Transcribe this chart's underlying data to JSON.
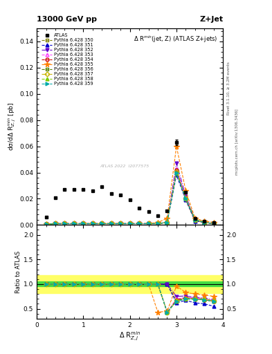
{
  "title_top": "13000 GeV pp",
  "title_right": "Z+Jet",
  "plot_title": "Δ R$^{min}$(jet, Z) (ATLAS Z+jets)",
  "ylabel_main": "dσ/dΔ R$^{min}_{Z,j}$ [pb]",
  "ylabel_ratio": "Ratio to ATLAS",
  "xlabel": "Δ R$^{min}_{Z,j}$",
  "watermark": "ATLAS 2022  I2077575",
  "right_label": "Rivet 3.1.10, ≥ 3.2M events",
  "right_label2": "mcplots.cern.ch [arXiv:1306.3436]",
  "xlim": [
    0,
    4
  ],
  "ylim_main": [
    0,
    0.15
  ],
  "ylim_ratio": [
    0.3,
    2.2
  ],
  "atlas_x": [
    0.2,
    0.4,
    0.6,
    0.8,
    1.0,
    1.2,
    1.4,
    1.6,
    1.8,
    2.0,
    2.2,
    2.4,
    2.6,
    2.8,
    3.0,
    3.2,
    3.4,
    3.6,
    3.8
  ],
  "atlas_y": [
    0.006,
    0.021,
    0.027,
    0.027,
    0.027,
    0.026,
    0.029,
    0.024,
    0.023,
    0.019,
    0.013,
    0.01,
    0.007,
    0.011,
    0.063,
    0.025,
    0.005,
    0.003,
    0.002
  ],
  "atlas_err": [
    0.0005,
    0.0005,
    0.0005,
    0.0005,
    0.0005,
    0.0005,
    0.0005,
    0.0005,
    0.0005,
    0.0005,
    0.0005,
    0.0005,
    0.0005,
    0.0005,
    0.002,
    0.0005,
    0.0005,
    0.0005,
    0.0005
  ],
  "pythia_x": [
    0.2,
    0.4,
    0.6,
    0.8,
    1.0,
    1.2,
    1.4,
    1.6,
    1.8,
    2.0,
    2.2,
    2.4,
    2.6,
    2.8,
    3.0,
    3.2,
    3.4,
    3.6,
    3.8
  ],
  "series": [
    {
      "label": "Pythia 6.428 350",
      "color": "#808000",
      "linestyle": "--",
      "marker": "s",
      "markerfill": "none",
      "y": [
        0.0005,
        0.001,
        0.001,
        0.001,
        0.001,
        0.001,
        0.001,
        0.001,
        0.001,
        0.001,
        0.001,
        0.001,
        0.001,
        0.002,
        0.041,
        0.019,
        0.003,
        0.002,
        0.001
      ],
      "ratio": [
        1.0,
        1.0,
        1.0,
        1.0,
        1.0,
        1.0,
        1.0,
        1.0,
        1.0,
        1.0,
        1.0,
        1.0,
        1.0,
        1.0,
        0.67,
        0.72,
        0.72,
        0.7,
        0.65
      ]
    },
    {
      "label": "Pythia 6.428 351",
      "color": "#0000cc",
      "linestyle": "--",
      "marker": "^",
      "markerfill": "full",
      "y": [
        0.0005,
        0.001,
        0.001,
        0.001,
        0.001,
        0.001,
        0.001,
        0.001,
        0.001,
        0.001,
        0.001,
        0.001,
        0.001,
        0.002,
        0.038,
        0.019,
        0.003,
        0.002,
        0.001
      ],
      "ratio": [
        1.0,
        1.0,
        1.0,
        1.0,
        1.0,
        1.0,
        1.0,
        1.0,
        1.0,
        1.0,
        1.0,
        1.0,
        1.0,
        1.0,
        0.62,
        0.67,
        0.62,
        0.6,
        0.55
      ]
    },
    {
      "label": "Pythia 6.428 352",
      "color": "#6600cc",
      "linestyle": "-.",
      "marker": "v",
      "markerfill": "full",
      "y": [
        0.0005,
        0.001,
        0.001,
        0.001,
        0.001,
        0.001,
        0.001,
        0.001,
        0.001,
        0.001,
        0.001,
        0.001,
        0.001,
        0.002,
        0.047,
        0.022,
        0.004,
        0.002,
        0.001
      ],
      "ratio": [
        1.0,
        1.0,
        1.0,
        1.0,
        1.0,
        1.0,
        1.0,
        1.0,
        1.0,
        1.0,
        1.0,
        1.0,
        1.0,
        1.0,
        0.75,
        0.76,
        0.73,
        0.72,
        0.68
      ]
    },
    {
      "label": "Pythia 6.428 353",
      "color": "#ff44ff",
      "linestyle": "--",
      "marker": "^",
      "markerfill": "none",
      "y": [
        0.0005,
        0.001,
        0.001,
        0.001,
        0.001,
        0.001,
        0.001,
        0.001,
        0.001,
        0.001,
        0.001,
        0.001,
        0.001,
        0.002,
        0.043,
        0.021,
        0.004,
        0.002,
        0.001
      ],
      "ratio": [
        1.0,
        1.0,
        1.0,
        1.0,
        1.0,
        1.0,
        1.0,
        1.0,
        1.0,
        1.0,
        1.0,
        1.0,
        1.0,
        0.43,
        0.7,
        0.73,
        0.72,
        0.7,
        0.67
      ]
    },
    {
      "label": "Pythia 6.428 354",
      "color": "#cc0000",
      "linestyle": "--",
      "marker": "o",
      "markerfill": "none",
      "y": [
        0.0005,
        0.001,
        0.001,
        0.001,
        0.001,
        0.001,
        0.001,
        0.001,
        0.001,
        0.001,
        0.001,
        0.001,
        0.001,
        0.002,
        0.042,
        0.02,
        0.004,
        0.002,
        0.001
      ],
      "ratio": [
        1.0,
        1.0,
        1.0,
        1.0,
        1.0,
        1.0,
        1.0,
        1.0,
        1.0,
        1.0,
        1.0,
        1.0,
        1.0,
        0.43,
        0.68,
        0.72,
        0.7,
        0.68,
        0.65
      ]
    },
    {
      "label": "Pythia 6.428 355",
      "color": "#ff8000",
      "linestyle": "--",
      "marker": "*",
      "markerfill": "full",
      "y": [
        0.0005,
        0.001,
        0.001,
        0.001,
        0.001,
        0.001,
        0.001,
        0.001,
        0.001,
        0.001,
        0.001,
        0.001,
        0.002,
        0.005,
        0.06,
        0.026,
        0.005,
        0.003,
        0.002
      ],
      "ratio": [
        1.0,
        1.0,
        1.0,
        1.0,
        1.0,
        1.0,
        1.0,
        1.0,
        1.0,
        1.0,
        1.0,
        1.0,
        0.43,
        0.45,
        0.96,
        0.83,
        0.8,
        0.78,
        0.75
      ]
    },
    {
      "label": "Pythia 6.428 356",
      "color": "#558000",
      "linestyle": "--",
      "marker": "s",
      "markerfill": "none",
      "y": [
        0.0005,
        0.001,
        0.001,
        0.001,
        0.001,
        0.001,
        0.001,
        0.001,
        0.001,
        0.001,
        0.001,
        0.001,
        0.001,
        0.002,
        0.04,
        0.02,
        0.004,
        0.002,
        0.001
      ],
      "ratio": [
        1.0,
        1.0,
        1.0,
        1.0,
        1.0,
        1.0,
        1.0,
        1.0,
        1.0,
        1.0,
        1.0,
        1.0,
        1.0,
        0.43,
        0.65,
        0.7,
        0.69,
        0.68,
        0.65
      ]
    },
    {
      "label": "Pythia 6.428 357",
      "color": "#c8b400",
      "linestyle": "-.",
      "marker": "D",
      "markerfill": "none",
      "y": [
        0.0005,
        0.001,
        0.001,
        0.001,
        0.001,
        0.001,
        0.001,
        0.001,
        0.001,
        0.001,
        0.001,
        0.001,
        0.001,
        0.002,
        0.041,
        0.02,
        0.004,
        0.002,
        0.001
      ],
      "ratio": [
        1.0,
        1.0,
        1.0,
        1.0,
        1.0,
        1.0,
        1.0,
        1.0,
        1.0,
        1.0,
        1.0,
        1.0,
        1.0,
        0.43,
        0.66,
        0.71,
        0.7,
        0.69,
        0.66
      ]
    },
    {
      "label": "Pythia 6.428 358",
      "color": "#80cc00",
      "linestyle": "--",
      "marker": "^",
      "markerfill": "full",
      "y": [
        0.0005,
        0.001,
        0.001,
        0.001,
        0.001,
        0.001,
        0.001,
        0.001,
        0.001,
        0.001,
        0.001,
        0.001,
        0.001,
        0.002,
        0.04,
        0.02,
        0.004,
        0.002,
        0.001
      ],
      "ratio": [
        1.0,
        1.0,
        1.0,
        1.0,
        1.0,
        1.0,
        1.0,
        1.0,
        1.0,
        1.0,
        1.0,
        1.0,
        1.0,
        0.43,
        0.66,
        0.71,
        0.7,
        0.69,
        0.66
      ]
    },
    {
      "label": "Pythia 6.428 359",
      "color": "#00aaaa",
      "linestyle": "--",
      "marker": ">",
      "markerfill": "full",
      "y": [
        0.0005,
        0.001,
        0.001,
        0.001,
        0.001,
        0.001,
        0.001,
        0.001,
        0.001,
        0.001,
        0.001,
        0.001,
        0.001,
        0.002,
        0.04,
        0.02,
        0.004,
        0.002,
        0.001
      ],
      "ratio": [
        1.0,
        1.0,
        1.0,
        1.0,
        1.0,
        1.0,
        1.0,
        1.0,
        1.0,
        1.0,
        1.0,
        1.0,
        1.0,
        0.43,
        0.65,
        0.7,
        0.69,
        0.68,
        0.65
      ]
    }
  ],
  "band_green_lo": 0.95,
  "band_green_hi": 1.05,
  "band_yellow_lo": 0.82,
  "band_yellow_hi": 1.18
}
